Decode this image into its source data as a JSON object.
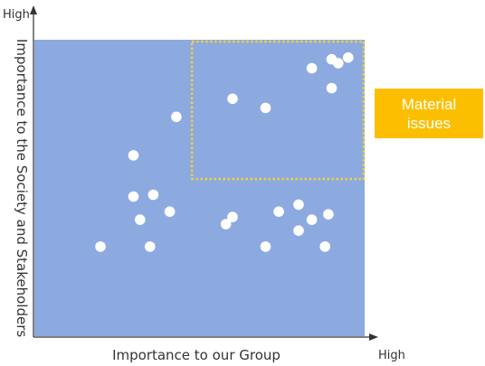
{
  "chart_data": {
    "type": "scatter",
    "title": "",
    "xlabel": "Importance to our Group",
    "ylabel": "Importance to the Society and Stakeholders",
    "x_axis_end_label": "High",
    "y_axis_end_label": "High",
    "xlim": [
      0,
      100
    ],
    "ylim": [
      0,
      100
    ],
    "grid": false,
    "points": [
      {
        "x": 20.0,
        "y": 30.2
      },
      {
        "x": 30.0,
        "y": 61.0
      },
      {
        "x": 30.0,
        "y": 47.1
      },
      {
        "x": 32.0,
        "y": 39.3
      },
      {
        "x": 35.0,
        "y": 30.2
      },
      {
        "x": 36.0,
        "y": 47.7
      },
      {
        "x": 41.0,
        "y": 42.0
      },
      {
        "x": 43.0,
        "y": 74.0
      },
      {
        "x": 58.0,
        "y": 37.8
      },
      {
        "x": 60.0,
        "y": 40.2
      },
      {
        "x": 60.0,
        "y": 80.1
      },
      {
        "x": 70.0,
        "y": 30.2
      },
      {
        "x": 70.0,
        "y": 77.0
      },
      {
        "x": 74.0,
        "y": 42.0
      },
      {
        "x": 80.0,
        "y": 35.6
      },
      {
        "x": 80.0,
        "y": 44.4
      },
      {
        "x": 84.0,
        "y": 39.3
      },
      {
        "x": 84.0,
        "y": 90.4
      },
      {
        "x": 88.0,
        "y": 30.2
      },
      {
        "x": 89.0,
        "y": 41.1
      },
      {
        "x": 90.0,
        "y": 83.7
      },
      {
        "x": 90.0,
        "y": 93.4
      },
      {
        "x": 92.0,
        "y": 92.1
      },
      {
        "x": 95.0,
        "y": 94.0
      }
    ],
    "highlight_region": {
      "x": [
        51,
        100
      ],
      "y": [
        53,
        100
      ],
      "style": "dotted",
      "color": "#f5d03c"
    },
    "callout": {
      "text_lines": [
        "Material",
        "issues"
      ],
      "color": "#fcbf00"
    }
  },
  "colors": {
    "plot_background": "#8caadf",
    "points": "#ffffff",
    "axis": "#333333"
  }
}
